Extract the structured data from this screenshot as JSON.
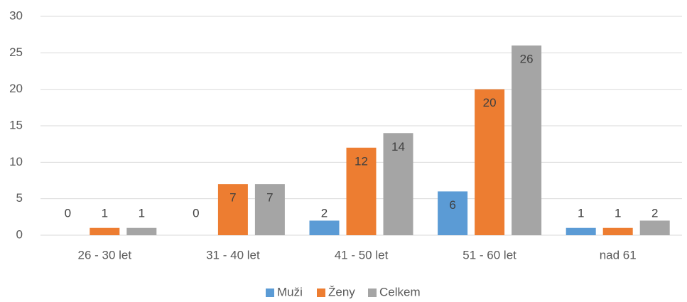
{
  "chart_data": {
    "type": "bar",
    "categories": [
      "26 - 30 let",
      "31 - 40 let",
      "41 - 50 let",
      "51 - 60 let",
      "nad 61"
    ],
    "series": [
      {
        "name": "Muži",
        "color": "#5b9bd5",
        "values": [
          0,
          0,
          2,
          6,
          1
        ]
      },
      {
        "name": "Ženy",
        "color": "#ed7d31",
        "values": [
          1,
          7,
          12,
          20,
          1
        ]
      },
      {
        "name": "Celkem",
        "color": "#a5a5a5",
        "values": [
          1,
          7,
          14,
          26,
          2
        ]
      }
    ],
    "ylim": [
      0,
      30
    ],
    "yticks": [
      0,
      5,
      10,
      15,
      20,
      25,
      30
    ],
    "grid": true,
    "legend": "bottom"
  }
}
